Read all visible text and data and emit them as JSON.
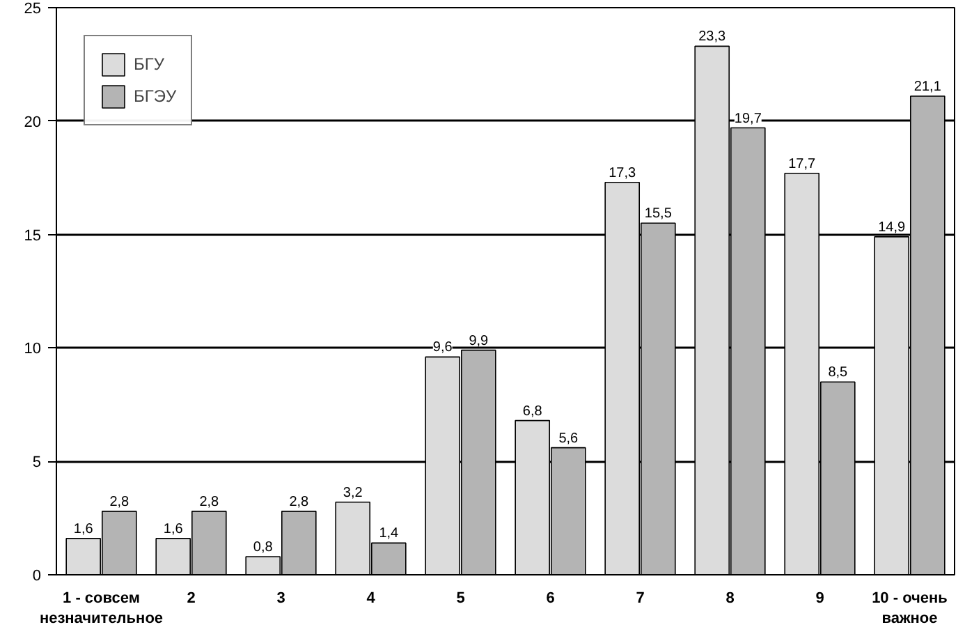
{
  "chart_data": {
    "type": "bar",
    "categories": [
      "1 - совсем незначительное",
      "2",
      "3",
      "4",
      "5",
      "6",
      "7",
      "8",
      "9",
      "10 - очень важное"
    ],
    "series": [
      {
        "name": "БГУ",
        "color": "#dcdcdc",
        "values": [
          1.6,
          1.6,
          0.8,
          3.2,
          9.6,
          6.8,
          17.3,
          23.3,
          17.7,
          14.9
        ],
        "value_labels": [
          "1,6",
          "1,6",
          "0,8",
          "3,2",
          "9,6",
          "6,8",
          "17,3",
          "23,3",
          "17,7",
          "14,9"
        ]
      },
      {
        "name": "БГЭУ",
        "color": "#b4b4b4",
        "values": [
          2.8,
          2.8,
          2.8,
          1.4,
          9.9,
          5.6,
          15.5,
          19.7,
          8.5,
          21.1
        ],
        "value_labels": [
          "2,8",
          "2,8",
          "2,8",
          "1,4",
          "9,9",
          "5,6",
          "15,5",
          "19,7",
          "8,5",
          "21,1"
        ]
      }
    ],
    "ylim": [
      0,
      25
    ],
    "yticks": [
      0,
      5,
      10,
      15,
      20,
      25
    ],
    "grid": "y",
    "legend": "top left"
  }
}
